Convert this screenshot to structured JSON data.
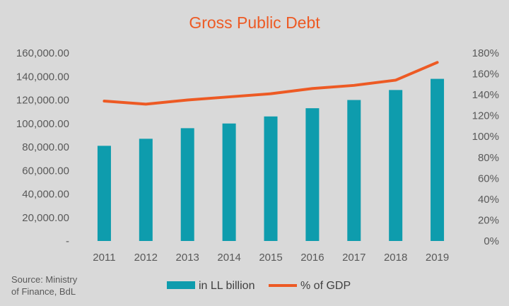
{
  "chart_data": {
    "type": "bar",
    "title": "Gross Public Debt",
    "categories": [
      "2011",
      "2012",
      "2013",
      "2014",
      "2015",
      "2016",
      "2017",
      "2018",
      "2019"
    ],
    "series": [
      {
        "name": "in LL billion",
        "type": "bar",
        "axis": "left",
        "color": "#0e9cad",
        "values": [
          81000,
          87000,
          96000,
          100000,
          106000,
          113000,
          120000,
          128500,
          138000
        ]
      },
      {
        "name": "% of GDP",
        "type": "line",
        "axis": "right",
        "color": "#ed5a24",
        "values": [
          134,
          131,
          135,
          138,
          141,
          146,
          149,
          154,
          171
        ]
      }
    ],
    "left_axis": {
      "ylim": [
        0,
        160000
      ],
      "ticks": [
        0,
        20000,
        40000,
        60000,
        80000,
        100000,
        120000,
        140000,
        160000
      ],
      "tick_labels": [
        "-",
        "20,000.00",
        "40,000.00",
        "60,000.00",
        "80,000.00",
        "100,000.00",
        "120,000.00",
        "140,000.00",
        "160,000.00"
      ]
    },
    "right_axis": {
      "ylim": [
        0,
        180
      ],
      "ticks": [
        0,
        20,
        40,
        60,
        80,
        100,
        120,
        140,
        160,
        180
      ],
      "tick_labels": [
        "0%",
        "20%",
        "40%",
        "60%",
        "80%",
        "100%",
        "120%",
        "140%",
        "160%",
        "180%"
      ]
    },
    "grid": false,
    "legend_position": "bottom"
  },
  "source_lines": [
    "Source: Ministry",
    "of Finance, BdL"
  ],
  "colors": {
    "background": "#d9d9d9",
    "bar": "#0e9cad",
    "line": "#ed5a24",
    "title": "#ed5a24"
  }
}
